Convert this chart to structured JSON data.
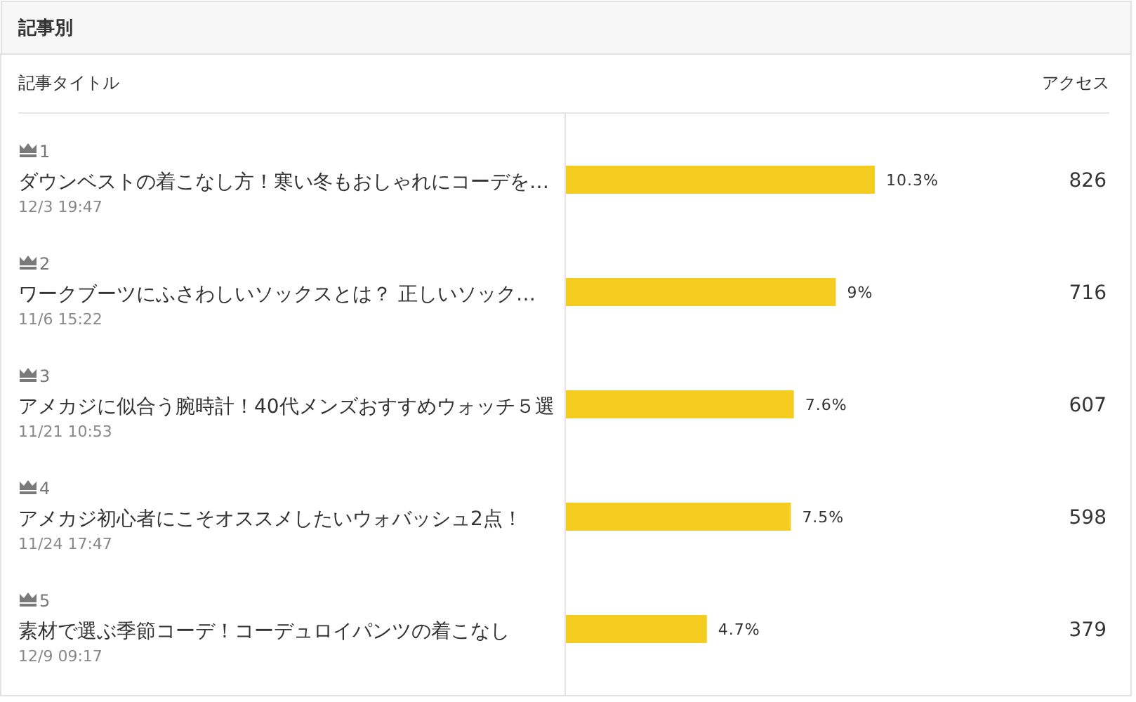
{
  "chart_data": {
    "type": "bar",
    "orientation": "horizontal",
    "title": "記事別",
    "ylabel": "記事タイトル",
    "annotations": [
      "アクセス"
    ],
    "categories": [
      "1\nダウンベストの着こなし方！寒い冬もおしゃれにコーデを…\n12/3 19:47",
      "2\nワークブーツにふさわしいソックスとは？ 正しいソック…\n11/6 15:22",
      "3\nアメカジに似合う腕時計！40代メンズおすすめウォッチ５選\n11/21 10:53",
      "4\nアメカジ初心者にこそオススメしたいウォバッシュ2点！\n11/24 17:47",
      "5\n素材で選ぶ季節コーデ！コーデュロイパンツの着こなし\n12/9 09:17"
    ],
    "y2_categories": [
      "826",
      "716",
      "607",
      "598",
      "379"
    ],
    "series": [
      {
        "color": "#f5cd21",
        "values": [
          10.3,
          9,
          7.6,
          7.5,
          4.7
        ],
        "value_labels": [
          "10.3%",
          "9%",
          "7.6%",
          "7.5%",
          "4.7%"
        ]
      }
    ]
  }
}
